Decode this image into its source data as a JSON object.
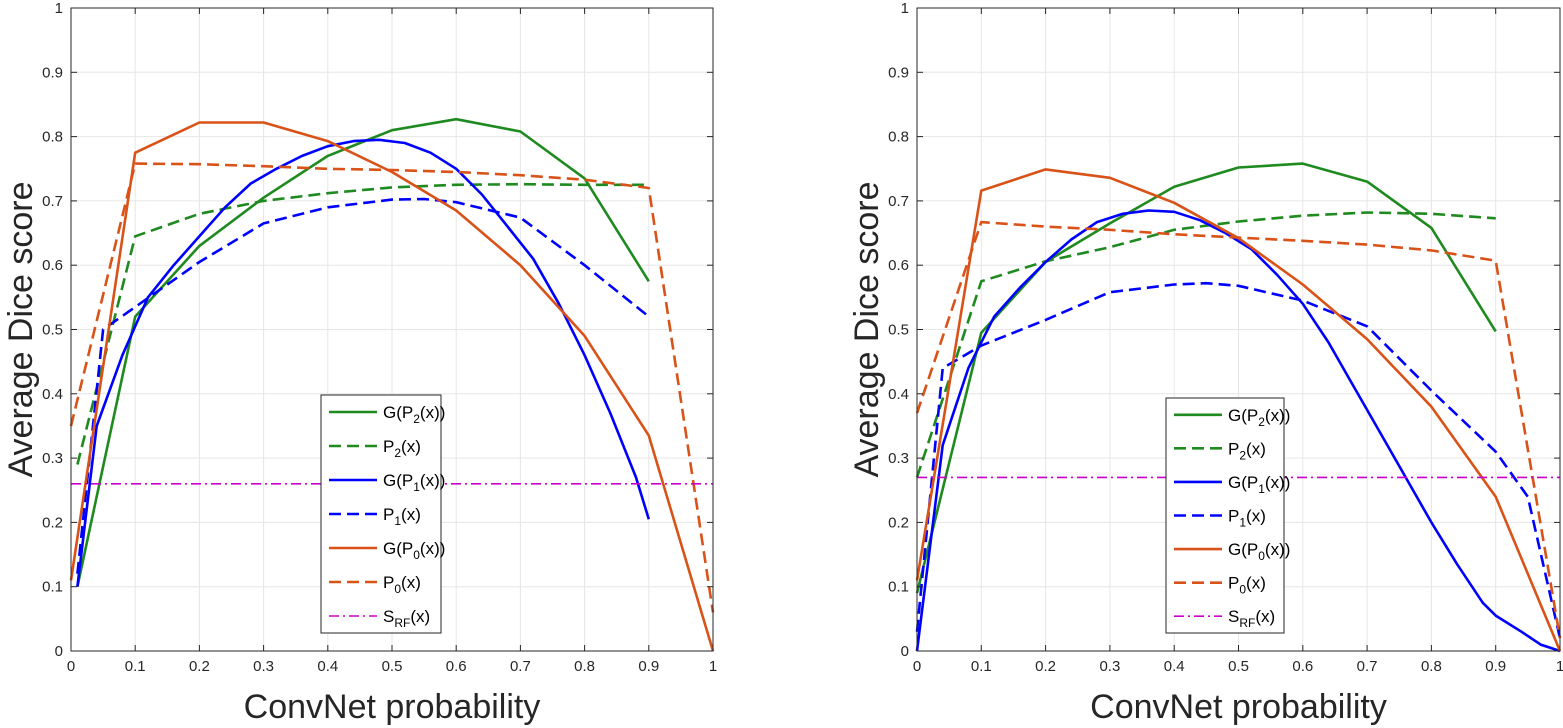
{
  "chart_data": [
    {
      "type": "line",
      "title": "",
      "xlabel": "ConvNet probability",
      "ylabel": "Average Dice score",
      "xlim": [
        0,
        1
      ],
      "ylim": [
        0,
        1
      ],
      "grid": true,
      "legend_position": "bottom-center",
      "xticks": [
        "0",
        "0.1",
        "0.2",
        "0.3",
        "0.4",
        "0.5",
        "0.6",
        "0.7",
        "0.8",
        "0.9",
        "1"
      ],
      "yticks": [
        "0",
        "0.1",
        "0.2",
        "0.3",
        "0.4",
        "0.5",
        "0.6",
        "0.7",
        "0.8",
        "0.9",
        "1"
      ],
      "series": [
        {
          "name": "G(P2(x))",
          "base": "G(P",
          "sub": "2",
          "tail": "(x))",
          "color": "#1f8a1f",
          "dash": "solid",
          "x": [
            0.01,
            0.1,
            0.2,
            0.3,
            0.4,
            0.5,
            0.6,
            0.7,
            0.8,
            0.9
          ],
          "y": [
            0.1,
            0.52,
            0.63,
            0.705,
            0.77,
            0.81,
            0.827,
            0.808,
            0.735,
            0.575
          ]
        },
        {
          "name": "P2(x)",
          "base": "P",
          "sub": "2",
          "tail": "(x)",
          "color": "#1f8a1f",
          "dash": "dash",
          "x": [
            0.01,
            0.1,
            0.2,
            0.3,
            0.4,
            0.5,
            0.6,
            0.7,
            0.8,
            0.9
          ],
          "y": [
            0.29,
            0.645,
            0.68,
            0.7,
            0.712,
            0.721,
            0.725,
            0.726,
            0.725,
            0.725
          ]
        },
        {
          "name": "G(P1(x))",
          "base": "G(P",
          "sub": "1",
          "tail": "(x))",
          "color": "#0000ff",
          "dash": "solid",
          "x": [
            0.01,
            0.04,
            0.08,
            0.12,
            0.16,
            0.2,
            0.24,
            0.28,
            0.32,
            0.36,
            0.4,
            0.44,
            0.48,
            0.52,
            0.56,
            0.6,
            0.64,
            0.68,
            0.72,
            0.76,
            0.8,
            0.84,
            0.88,
            0.9
          ],
          "y": [
            0.1,
            0.35,
            0.46,
            0.55,
            0.6,
            0.645,
            0.69,
            0.727,
            0.75,
            0.77,
            0.785,
            0.793,
            0.795,
            0.79,
            0.775,
            0.75,
            0.71,
            0.66,
            0.61,
            0.54,
            0.46,
            0.37,
            0.27,
            0.205
          ]
        },
        {
          "name": "P1(x)",
          "base": "P",
          "sub": "1",
          "tail": "(x)",
          "color": "#0000ff",
          "dash": "dash",
          "x": [
            0.01,
            0.05,
            0.1,
            0.15,
            0.2,
            0.3,
            0.4,
            0.5,
            0.55,
            0.6,
            0.7,
            0.8,
            0.9
          ],
          "y": [
            0.12,
            0.5,
            0.535,
            0.57,
            0.605,
            0.665,
            0.69,
            0.702,
            0.703,
            0.698,
            0.674,
            0.6,
            0.52
          ]
        },
        {
          "name": "G(P0(x))",
          "base": "G(P",
          "sub": "0",
          "tail": "(x))",
          "color": "#d95319",
          "dash": "solid",
          "x": [
            0,
            0.1,
            0.2,
            0.3,
            0.4,
            0.5,
            0.6,
            0.7,
            0.8,
            0.9,
            1.0
          ],
          "y": [
            0.11,
            0.775,
            0.822,
            0.822,
            0.793,
            0.745,
            0.685,
            0.6,
            0.49,
            0.335,
            0.0
          ]
        },
        {
          "name": "P0(x)",
          "base": "P",
          "sub": "0",
          "tail": "(x)",
          "color": "#d95319",
          "dash": "dash",
          "x": [
            0,
            0.1,
            0.2,
            0.3,
            0.4,
            0.5,
            0.6,
            0.7,
            0.8,
            0.9,
            1.0
          ],
          "y": [
            0.35,
            0.758,
            0.757,
            0.754,
            0.75,
            0.748,
            0.745,
            0.74,
            0.733,
            0.72,
            0.06
          ]
        },
        {
          "name": "SRF(x)",
          "base": "S",
          "sub": "RF",
          "tail": "(x)",
          "color": "#cc00cc",
          "dash": "dashdot",
          "x": [
            0,
            1
          ],
          "y": [
            0.26,
            0.26
          ]
        }
      ]
    },
    {
      "type": "line",
      "title": "",
      "xlabel": "ConvNet probability",
      "ylabel": "Average Dice score",
      "xlim": [
        0,
        1
      ],
      "ylim": [
        0,
        1
      ],
      "grid": true,
      "legend_position": "bottom-center",
      "xticks": [
        "0",
        "0.1",
        "0.2",
        "0.3",
        "0.4",
        "0.5",
        "0.6",
        "0.7",
        "0.8",
        "0.9",
        "1"
      ],
      "yticks": [
        "0",
        "0.1",
        "0.2",
        "0.3",
        "0.4",
        "0.5",
        "0.6",
        "0.7",
        "0.8",
        "0.9",
        "1"
      ],
      "series": [
        {
          "name": "G(P2(x))",
          "base": "G(P",
          "sub": "2",
          "tail": "(x))",
          "color": "#1f8a1f",
          "dash": "solid",
          "x": [
            0,
            0.1,
            0.2,
            0.3,
            0.4,
            0.5,
            0.6,
            0.7,
            0.8,
            0.9
          ],
          "y": [
            0.09,
            0.495,
            0.605,
            0.665,
            0.722,
            0.752,
            0.758,
            0.73,
            0.658,
            0.497
          ]
        },
        {
          "name": "P2(x)",
          "base": "P",
          "sub": "2",
          "tail": "(x)",
          "color": "#1f8a1f",
          "dash": "dash",
          "x": [
            0,
            0.1,
            0.2,
            0.3,
            0.4,
            0.5,
            0.6,
            0.7,
            0.8,
            0.9
          ],
          "y": [
            0.27,
            0.575,
            0.606,
            0.628,
            0.655,
            0.668,
            0.677,
            0.682,
            0.68,
            0.673
          ]
        },
        {
          "name": "G(P1(x))",
          "base": "G(P",
          "sub": "1",
          "tail": "(x))",
          "color": "#0000ff",
          "dash": "solid",
          "x": [
            0,
            0.04,
            0.08,
            0.12,
            0.16,
            0.2,
            0.24,
            0.28,
            0.32,
            0.36,
            0.4,
            0.44,
            0.48,
            0.52,
            0.56,
            0.6,
            0.64,
            0.68,
            0.72,
            0.76,
            0.8,
            0.84,
            0.88,
            0.9,
            0.94,
            0.97,
            1.0
          ],
          "y": [
            0.0,
            0.32,
            0.44,
            0.52,
            0.565,
            0.605,
            0.64,
            0.667,
            0.68,
            0.685,
            0.683,
            0.67,
            0.65,
            0.625,
            0.585,
            0.54,
            0.48,
            0.41,
            0.34,
            0.27,
            0.2,
            0.135,
            0.075,
            0.055,
            0.03,
            0.01,
            0.0
          ]
        },
        {
          "name": "P1(x)",
          "base": "P",
          "sub": "1",
          "tail": "(x)",
          "color": "#0000ff",
          "dash": "dash",
          "x": [
            0,
            0.04,
            0.1,
            0.2,
            0.3,
            0.4,
            0.45,
            0.5,
            0.6,
            0.7,
            0.8,
            0.9,
            0.95,
            1.0
          ],
          "y": [
            0.03,
            0.44,
            0.475,
            0.515,
            0.558,
            0.57,
            0.572,
            0.568,
            0.545,
            0.505,
            0.405,
            0.31,
            0.24,
            0.02
          ]
        },
        {
          "name": "G(P0(x))",
          "base": "G(P",
          "sub": "0",
          "tail": "(x))",
          "color": "#d95319",
          "dash": "solid",
          "x": [
            0,
            0.1,
            0.2,
            0.3,
            0.4,
            0.5,
            0.6,
            0.7,
            0.8,
            0.9,
            1.0
          ],
          "y": [
            0.11,
            0.716,
            0.749,
            0.736,
            0.697,
            0.642,
            0.57,
            0.485,
            0.38,
            0.24,
            0.0
          ]
        },
        {
          "name": "P0(x)",
          "base": "P",
          "sub": "0",
          "tail": "(x)",
          "color": "#d95319",
          "dash": "dash",
          "x": [
            0,
            0.1,
            0.2,
            0.3,
            0.4,
            0.5,
            0.6,
            0.7,
            0.8,
            0.9,
            1.0
          ],
          "y": [
            0.37,
            0.667,
            0.66,
            0.655,
            0.648,
            0.643,
            0.638,
            0.632,
            0.623,
            0.607,
            0.02
          ]
        },
        {
          "name": "SRF(x)",
          "base": "S",
          "sub": "RF",
          "tail": "(x)",
          "color": "#cc00cc",
          "dash": "dashdot",
          "x": [
            0,
            1
          ],
          "y": [
            0.27,
            0.27
          ]
        }
      ]
    }
  ]
}
